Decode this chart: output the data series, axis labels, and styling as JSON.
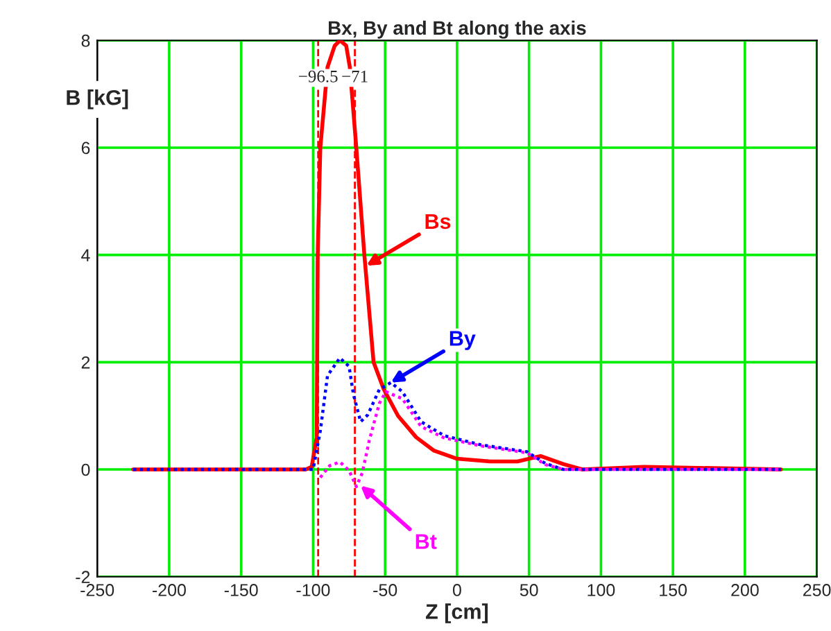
{
  "chart_data": {
    "type": "line",
    "title": "Bx, By and Bt along the axis",
    "xlabel": "Z [cm]",
    "ylabel": "B [kG]",
    "xlim": [
      -250,
      250
    ],
    "ylim": [
      -2,
      8
    ],
    "xticks": [
      -250,
      -200,
      -150,
      -100,
      -50,
      0,
      50,
      100,
      150,
      200,
      250
    ],
    "yticks": [
      -2,
      0,
      2,
      4,
      6,
      8
    ],
    "grid": true,
    "series": [
      {
        "color": "#ff0000",
        "line_style": "solid",
        "x": [
          -225,
          -150,
          -105,
          -101,
          -97.5,
          -96.8,
          -95,
          -90,
          -85,
          -81.4,
          -77,
          -74.5,
          -70,
          -64.4,
          -58,
          -51,
          -41,
          -28.4,
          -16,
          0,
          23,
          42,
          58,
          74,
          87,
          130,
          225
        ],
        "values": [
          0,
          0,
          0,
          0.05,
          0.6,
          4,
          6,
          7.5,
          7.9,
          8,
          7.9,
          7.5,
          6,
          4,
          2,
          1.5,
          1,
          0.6,
          0.35,
          0.2,
          0.15,
          0.15,
          0.25,
          0.1,
          0,
          0.05,
          0
        ]
      },
      {
        "color": "#0000ff",
        "line_style": "dotted",
        "x": [
          -225,
          -100,
          -95,
          -90,
          -81.4,
          -75,
          -72,
          -67,
          -62,
          -54,
          -46,
          -38,
          -25,
          -9,
          16.5,
          48.6,
          61.5,
          74,
          225
        ],
        "values": [
          0,
          0,
          0.72,
          1.75,
          2.08,
          1.92,
          1.4,
          0.89,
          1.02,
          1.49,
          1.62,
          1.45,
          0.89,
          0.63,
          0.46,
          0.33,
          0.11,
          0,
          0
        ]
      },
      {
        "color": "#ff00ff",
        "line_style": "dotted",
        "x": [
          -95,
          -88.5,
          -81.4,
          -75,
          -70,
          -65.8,
          -61,
          -54,
          -49.5,
          -38,
          -25,
          -9,
          16.5,
          48.6,
          61.5,
          74,
          225
        ],
        "values": [
          -0.15,
          0.07,
          0.14,
          -0.02,
          -0.32,
          -0.06,
          0.54,
          1.23,
          1.45,
          1.32,
          0.8,
          0.59,
          0.44,
          0.31,
          0.09,
          0,
          0
        ]
      }
    ],
    "ref_lines": [
      {
        "axis": "x",
        "value": -96.5,
        "label": "−96.5",
        "color": "#ff0000",
        "line_style": "dashed"
      },
      {
        "axis": "x",
        "value": -71,
        "label": "−71",
        "color": "#ff0000",
        "line_style": "dashed"
      }
    ],
    "annotations": [
      {
        "text": "Bs",
        "x": -63,
        "y": 3.8
      },
      {
        "text": "By",
        "x": -46,
        "y": 1.62
      },
      {
        "text": "Bt",
        "x": -67,
        "y": -0.3
      }
    ]
  }
}
